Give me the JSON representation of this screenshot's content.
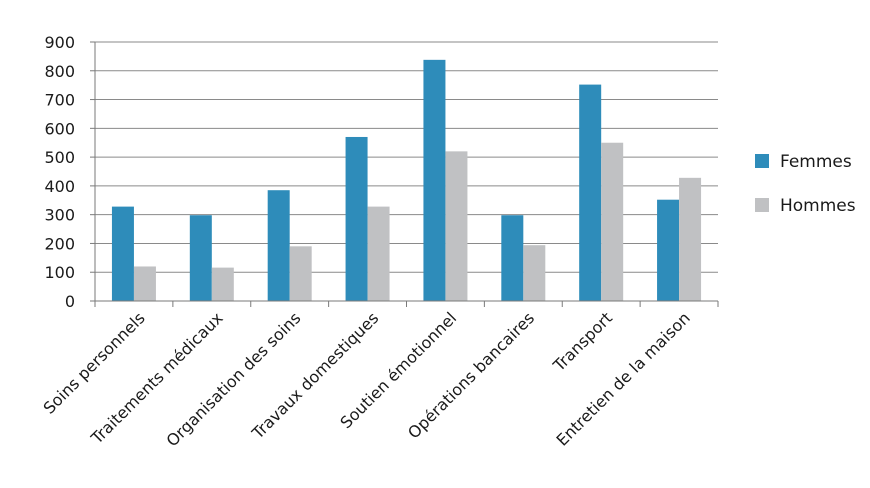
{
  "chart_data": {
    "type": "bar",
    "title": "",
    "xlabel": "",
    "ylabel": "",
    "categories": [
      "Soins personnels",
      "Traitements médicaux",
      "Organisation des soins",
      "Travaux domestiques",
      "Soutien émotionnel",
      "Opérations bancaires",
      "Transport",
      "Entretien de la maison"
    ],
    "series": [
      {
        "name": "Femmes",
        "color": "#2e8cba",
        "values": [
          328,
          298,
          385,
          570,
          838,
          298,
          752,
          352
        ]
      },
      {
        "name": "Hommes",
        "color": "#c0c1c3",
        "values": [
          120,
          116,
          190,
          328,
          520,
          194,
          550,
          428
        ]
      }
    ],
    "ylim": [
      0,
      900
    ],
    "yticks": [
      "0",
      "100",
      "200",
      "300",
      "400",
      "500",
      "600",
      "700",
      "800",
      "900"
    ],
    "grid": true,
    "legend_position": "right"
  }
}
